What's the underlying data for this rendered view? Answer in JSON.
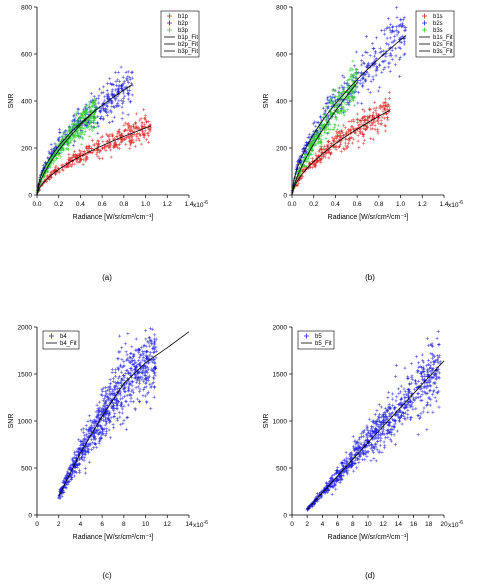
{
  "chart_data": [
    {
      "type": "scatter",
      "panel_label": "(a)",
      "xlabel": "Radiance [W/sr/cm²/cm⁻¹]",
      "ylabel": "SNR",
      "xlim": [
        0,
        1.4e-06
      ],
      "ylim": [
        0,
        800
      ],
      "x_exponent_label": "x10",
      "x_exponent": "-6",
      "xticks": [
        0,
        0.2,
        0.4,
        0.6,
        0.8,
        1.0,
        1.2,
        1.4
      ],
      "xtick_labels": [
        "0.0",
        "0.2",
        "0.4",
        "0.6",
        "0.8",
        "1.0",
        "1.2",
        "1.4"
      ],
      "yticks": [
        0,
        200,
        400,
        600,
        800
      ],
      "ytick_labels": [
        "0",
        "200",
        "400",
        "600",
        "800"
      ],
      "legend_position": "top-right",
      "series": [
        {
          "name": "b1p",
          "color": "#e02020",
          "marker": "+",
          "xmax": 1.05,
          "fit": {
            "a": 285,
            "p": 0.6
          }
        },
        {
          "name": "b2p",
          "color": "#2020e0",
          "marker": "+",
          "xmax": 0.88,
          "fit": {
            "a": 505,
            "p": 0.55
          }
        },
        {
          "name": "b3p",
          "color": "#30d030",
          "marker": "+",
          "xmax": 0.55,
          "fit": {
            "a": 540,
            "p": 0.65
          }
        }
      ],
      "fits": [
        {
          "name": "b1p_Fit",
          "color": "#000000"
        },
        {
          "name": "b2p_Fit",
          "color": "#000000"
        },
        {
          "name": "b3p_Fit",
          "color": "#000000"
        }
      ]
    },
    {
      "type": "scatter",
      "panel_label": "(b)",
      "xlabel": "Radiance [W/sr/cm²/cm⁻¹]",
      "ylabel": "SNR",
      "xlim": [
        0,
        1.4e-06
      ],
      "ylim": [
        0,
        800
      ],
      "x_exponent_label": "x10",
      "x_exponent": "-6",
      "xticks": [
        0,
        0.2,
        0.4,
        0.6,
        0.8,
        1.0,
        1.2,
        1.4
      ],
      "xtick_labels": [
        "0.0",
        "0.2",
        "0.4",
        "0.6",
        "0.8",
        "1.0",
        "1.2",
        "1.4"
      ],
      "yticks": [
        0,
        200,
        400,
        600,
        800
      ],
      "ytick_labels": [
        "0",
        "200",
        "400",
        "600",
        "800"
      ],
      "legend_position": "top-right",
      "series": [
        {
          "name": "b1s",
          "color": "#e02020",
          "marker": "+",
          "xmax": 0.9,
          "fit": {
            "a": 385,
            "p": 0.62
          }
        },
        {
          "name": "b2s",
          "color": "#2020e0",
          "marker": "+",
          "xmax": 1.05,
          "fit": {
            "a": 660,
            "p": 0.58
          }
        },
        {
          "name": "b3s",
          "color": "#30d030",
          "marker": "+",
          "xmax": 0.6,
          "fit": {
            "a": 690,
            "p": 0.72
          }
        }
      ],
      "fits": [
        {
          "name": "b1s_Fit",
          "color": "#000000"
        },
        {
          "name": "b2s_Fit",
          "color": "#000000"
        },
        {
          "name": "b3s_Fit",
          "color": "#000000"
        }
      ]
    },
    {
      "type": "scatter",
      "panel_label": "(c)",
      "xlabel": "Radiance [W/sr/cm²/cm⁻¹]",
      "ylabel": "SNR",
      "xlim": [
        0,
        1.4e-05
      ],
      "ylim": [
        0,
        2000
      ],
      "x_exponent_label": "x10",
      "x_exponent": "-6",
      "xticks": [
        0,
        2,
        4,
        6,
        8,
        10,
        12,
        14
      ],
      "xtick_labels": [
        "0",
        "2",
        "4",
        "6",
        "8",
        "10",
        "12",
        "14"
      ],
      "yticks": [
        0,
        500,
        1000,
        1500,
        2000
      ],
      "ytick_labels": [
        "0",
        "500",
        "1000",
        "1500",
        "2000"
      ],
      "legend_position": "top-left",
      "series": [
        {
          "name": "b4",
          "color": "#2020e0",
          "marker": "+",
          "xmin": 2,
          "xmax": 11,
          "fit": {
            "points": [
              [
                2,
                200
              ],
              [
                4,
                660
              ],
              [
                6,
                1050
              ],
              [
                8,
                1400
              ],
              [
                10,
                1620
              ],
              [
                12,
                1780
              ],
              [
                14,
                1950
              ]
            ]
          }
        }
      ],
      "fits": [
        {
          "name": "b4_Fit",
          "color": "#000000"
        }
      ]
    },
    {
      "type": "scatter",
      "panel_label": "(d)",
      "xlabel": "Radiance [W/sr/cm²/cm⁻¹]",
      "ylabel": "SNR",
      "xlim": [
        0,
        2e-05
      ],
      "ylim": [
        0,
        2000
      ],
      "x_exponent_label": "x10",
      "x_exponent": "-6",
      "xticks": [
        0,
        2,
        4,
        6,
        8,
        10,
        12,
        14,
        16,
        18,
        20
      ],
      "xtick_labels": [
        "0",
        "2",
        "4",
        "6",
        "8",
        "10",
        "12",
        "14",
        "16",
        "18",
        "20"
      ],
      "yticks": [
        0,
        500,
        1000,
        1500,
        2000
      ],
      "ytick_labels": [
        "0",
        "500",
        "1000",
        "1500",
        "2000"
      ],
      "legend_position": "top-left",
      "series": [
        {
          "name": "b5",
          "color": "#2020e0",
          "marker": "+",
          "xmin": 2,
          "xmax": 19.5,
          "fit": {
            "points": [
              [
                2,
                60
              ],
              [
                10,
                770
              ],
              [
                20,
                1640
              ]
            ]
          }
        }
      ],
      "fits": [
        {
          "name": "b5_Fit",
          "color": "#000000"
        }
      ]
    }
  ]
}
